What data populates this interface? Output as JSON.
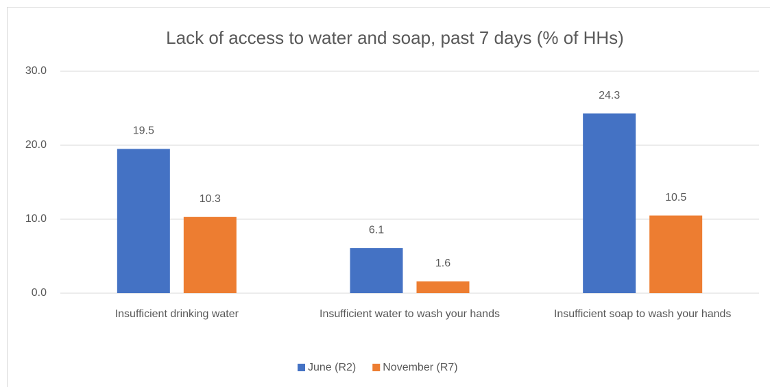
{
  "chart_data": {
    "type": "bar",
    "title": "Lack of access to water and soap, past 7 days (% of HHs)",
    "categories": [
      "Insufficient drinking water",
      "Insufficient water to wash your hands",
      "Insufficient soap to wash your hands"
    ],
    "series": [
      {
        "name": "June (R2)",
        "color": "#4472c4",
        "values": [
          19.5,
          6.1,
          24.3
        ]
      },
      {
        "name": "November (R7)",
        "color": "#ed7d31",
        "values": [
          10.3,
          1.6,
          10.5
        ]
      }
    ],
    "ylim": [
      0,
      30
    ],
    "yticks": [
      {
        "value": 0,
        "label": "0.0"
      },
      {
        "value": 10,
        "label": "10.0"
      },
      {
        "value": 20,
        "label": "20.0"
      },
      {
        "value": 30,
        "label": "30.0"
      }
    ],
    "grid": true,
    "legend": "bottom"
  }
}
